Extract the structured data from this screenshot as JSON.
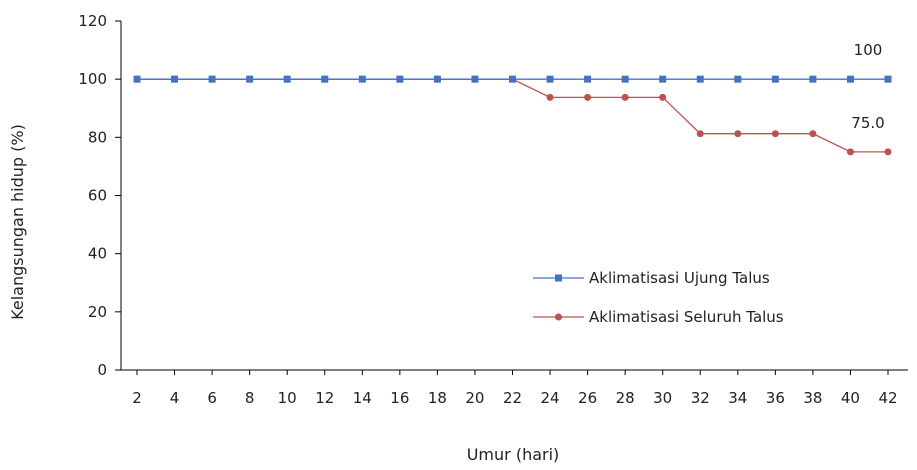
{
  "chart_data": {
    "type": "line",
    "xlabel": "Umur (hari)",
    "ylabel": "Kelangsungan hidup (%)",
    "ylim": [
      0,
      120
    ],
    "yticks": [
      0,
      20,
      40,
      60,
      80,
      100,
      120
    ],
    "grid": false,
    "legend_position": "bottom-right",
    "categories": [
      "2",
      "4",
      "6",
      "8",
      "10",
      "12",
      "14",
      "16",
      "18",
      "20",
      "22",
      "24",
      "26",
      "28",
      "30",
      "32",
      "34",
      "36",
      "38",
      "40",
      "42"
    ],
    "series": [
      {
        "name": "Aklimatisasi Ujung Talus",
        "color": "#4472C4",
        "marker": "square",
        "values": [
          100,
          100,
          100,
          100,
          100,
          100,
          100,
          100,
          100,
          100,
          100,
          100,
          100,
          100,
          100,
          100,
          100,
          100,
          100,
          100,
          100
        ],
        "end_label": "100"
      },
      {
        "name": "Aklimatisasi Seluruh Talus",
        "color": "#C0504D",
        "marker": "circle",
        "values": [
          100,
          100,
          100,
          100,
          100,
          100,
          100,
          100,
          100,
          100,
          100,
          93.75,
          93.75,
          93.75,
          93.75,
          81.25,
          81.25,
          81.25,
          81.25,
          75,
          75
        ],
        "end_label": "75.0"
      }
    ]
  }
}
